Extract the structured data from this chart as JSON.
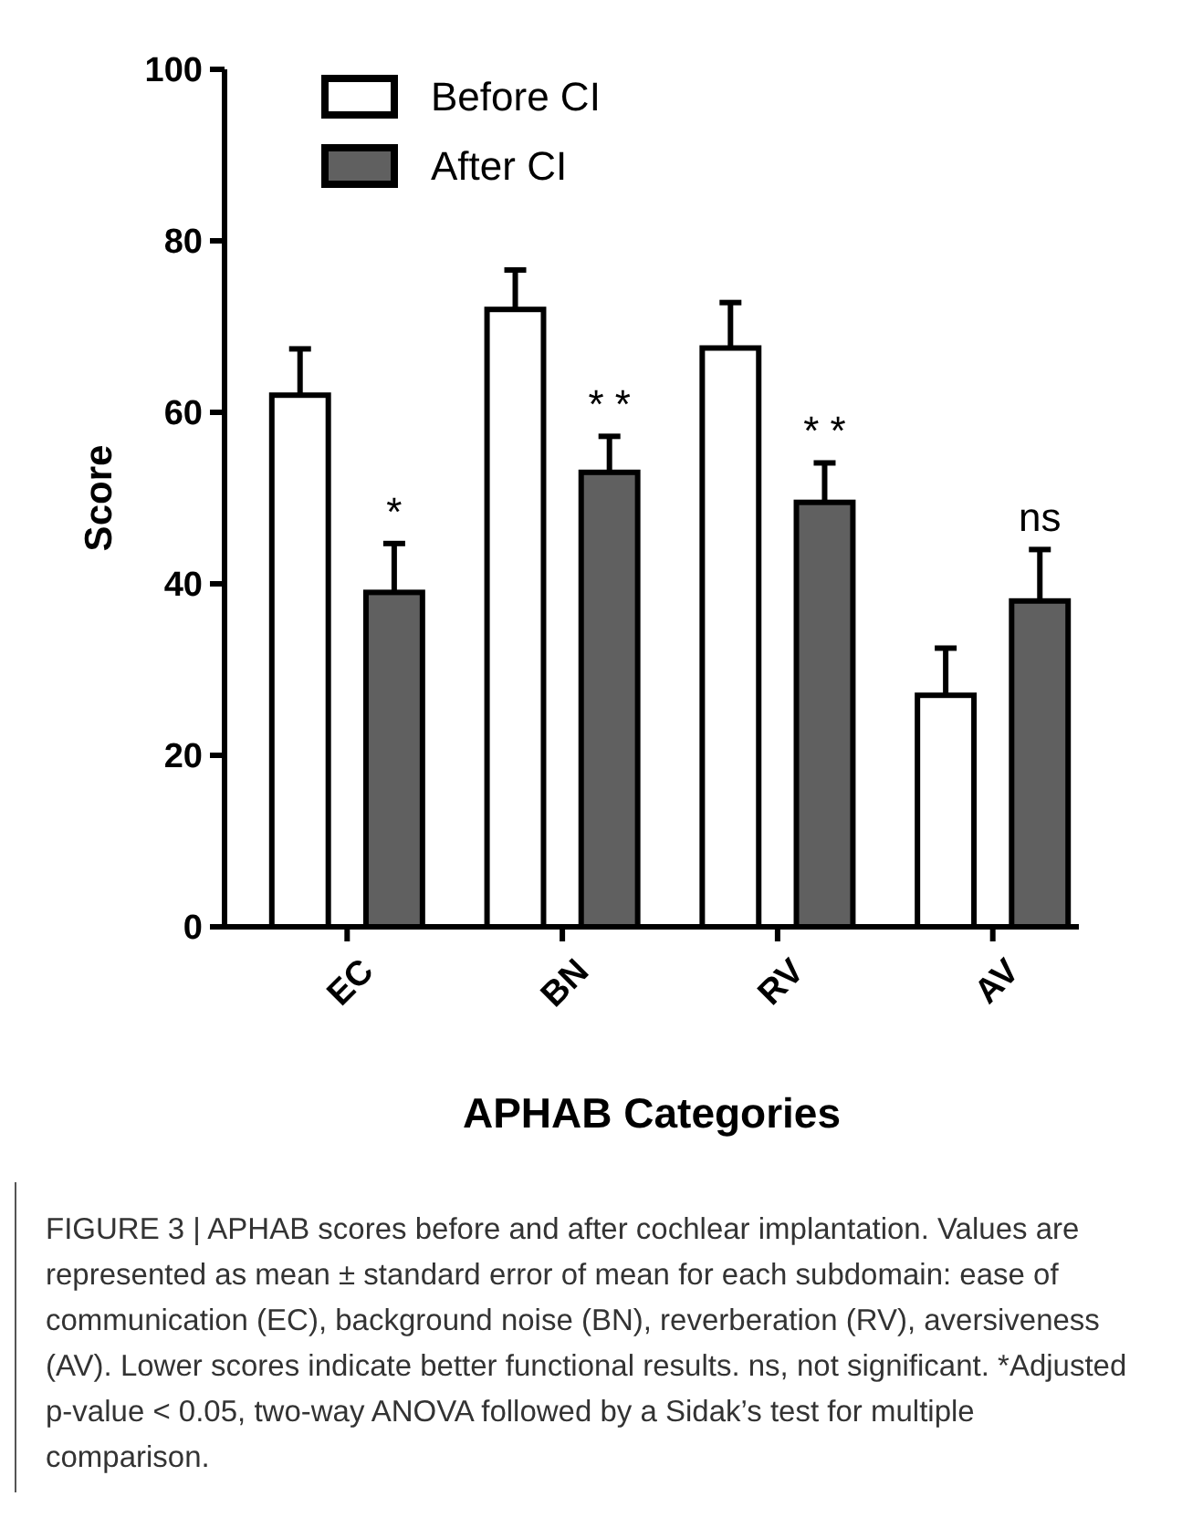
{
  "chart_data": {
    "type": "bar",
    "xlabel": "APHAB Categories",
    "ylabel": "Score",
    "categories": [
      "EC",
      "BN",
      "RV",
      "AV"
    ],
    "series": [
      {
        "name": "Before CI",
        "color": "#ffffff",
        "values": [
          62,
          72,
          67.5,
          27
        ],
        "errors": [
          5.4,
          4.6,
          5.3,
          5.5
        ]
      },
      {
        "name": "After CI",
        "color": "#606060",
        "values": [
          39,
          53,
          49.5,
          38
        ],
        "errors": [
          5.7,
          4.2,
          4.6,
          6
        ]
      }
    ],
    "ylim": [
      0,
      100
    ],
    "yticks": [
      0,
      20,
      40,
      60,
      80,
      100
    ],
    "grid": false,
    "legend": "top left",
    "annotations": [
      "*",
      "* *",
      "* *",
      "ns",
      "FIGURE 3 | APHAB scores before and after cochlear implantation. Values are represented as mean ± standard error of mean for each subdomain: ease of communication (EC), background noise (BN), reverberation (RV), aversiveness (AV). Lower scores indicate better functional results. ns, not significant. *Adjusted p-value < 0.05, two-way ANOVA followed by a Sidak’s test for multiple comparison."
    ]
  }
}
